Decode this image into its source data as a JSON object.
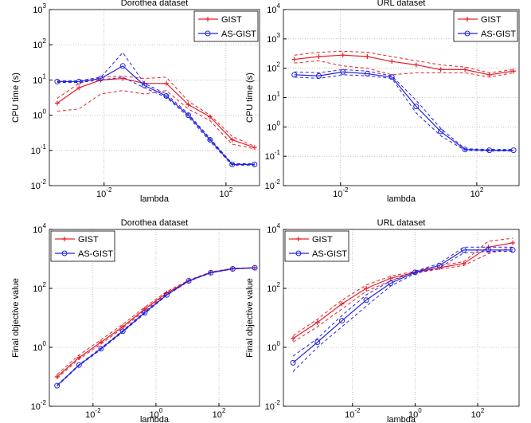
{
  "chart_data": [
    {
      "type": "line",
      "title": "Dorothea dataset",
      "xlabel": "lambda",
      "ylabel": "CPU time (s)",
      "log_x": true,
      "log_y": true,
      "grid": true,
      "legend": "upper right",
      "x": [
        0.00029,
        0.0015,
        0.0078,
        0.041,
        0.21,
        1.1,
        5.8,
        30,
        160,
        870
      ],
      "xlim": [
        0.00016,
        1260
      ],
      "xticks": [
        {
          "value": 0.01,
          "label": "10",
          "exponent": "-2"
        },
        {
          "value": 100,
          "label": "10",
          "exponent": "2"
        }
      ],
      "ylim": [
        0.01,
        1000
      ],
      "yticks": [
        {
          "value": 0.01,
          "label": "10",
          "exponent": "-2"
        },
        {
          "value": 0.1,
          "label": "10",
          "exponent": "-1"
        },
        {
          "value": 1,
          "label": "10",
          "exponent": "0"
        },
        {
          "value": 10,
          "label": "10",
          "exponent": "1"
        },
        {
          "value": 100,
          "label": "10",
          "exponent": "2"
        },
        {
          "value": 1000,
          "label": "10",
          "exponent": "3"
        }
      ],
      "series": [
        {
          "name": "GIST",
          "color": "#e8202a",
          "marker": "plus",
          "values": [
            2.2,
            6,
            10,
            11,
            8,
            8,
            2,
            0.9,
            0.2,
            0.12
          ],
          "upper": [
            3,
            8,
            12,
            13,
            11,
            12,
            2.5,
            1,
            0.25,
            0.13
          ],
          "lower": [
            1.3,
            1.5,
            4,
            5,
            4,
            5,
            1.5,
            0.7,
            0.15,
            0.11
          ]
        },
        {
          "name": "AS-GIST",
          "color": "#2323e0",
          "marker": "circle",
          "values": [
            9,
            9,
            11,
            25,
            7,
            3.5,
            1,
            0.2,
            0.04,
            0.04
          ],
          "upper": [
            9.5,
            9.5,
            12,
            60,
            8,
            4,
            1.1,
            0.22,
            0.042,
            0.042
          ],
          "lower": [
            8.5,
            8.5,
            10,
            12,
            6,
            3.2,
            0.9,
            0.18,
            0.038,
            0.038
          ]
        }
      ]
    },
    {
      "type": "line",
      "title": "URL dataset",
      "xlabel": "lambda",
      "ylabel": "CPU time (s)",
      "log_x": true,
      "log_y": true,
      "grid": true,
      "legend": "upper right",
      "x": [
        0.00044,
        0.0023,
        0.0117,
        0.061,
        0.32,
        1.66,
        8.7,
        45,
        234,
        1200
      ],
      "xlim": [
        0.00021,
        1740
      ],
      "xticks": [
        {
          "value": 0.01,
          "label": "10",
          "exponent": "-2"
        },
        {
          "value": 100,
          "label": "10",
          "exponent": "2"
        }
      ],
      "ylim": [
        0.01,
        10000
      ],
      "yticks": [
        {
          "value": 0.01,
          "label": "10",
          "exponent": "-2"
        },
        {
          "value": 0.1,
          "label": "10",
          "exponent": "-1"
        },
        {
          "value": 1,
          "label": "10",
          "exponent": "0"
        },
        {
          "value": 10,
          "label": "10",
          "exponent": "1"
        },
        {
          "value": 100,
          "label": "10",
          "exponent": "2"
        },
        {
          "value": 1000,
          "label": "10",
          "exponent": "3"
        },
        {
          "value": 10000,
          "label": "10",
          "exponent": "4"
        }
      ],
      "series": [
        {
          "name": "GIST",
          "color": "#e8202a",
          "marker": "plus",
          "values": [
            200,
            250,
            280,
            250,
            170,
            130,
            90,
            90,
            60,
            80
          ],
          "upper": [
            280,
            350,
            380,
            350,
            250,
            180,
            130,
            110,
            70,
            90
          ],
          "lower": [
            150,
            180,
            120,
            100,
            60,
            70,
            70,
            70,
            50,
            70
          ]
        },
        {
          "name": "AS-GIST",
          "color": "#2323e0",
          "marker": "circle",
          "values": [
            60,
            55,
            75,
            65,
            50,
            5,
            0.7,
            0.17,
            0.16,
            0.16
          ],
          "upper": [
            75,
            70,
            90,
            80,
            55,
            8,
            0.9,
            0.18,
            0.17,
            0.17
          ],
          "lower": [
            50,
            45,
            60,
            55,
            45,
            3,
            0.5,
            0.16,
            0.15,
            0.15
          ]
        }
      ]
    },
    {
      "type": "line",
      "title": "Dorothea dataset",
      "xlabel": "lambda",
      "ylabel": "Final objective value",
      "log_x": true,
      "log_y": true,
      "grid": true,
      "legend": "upper left",
      "x": [
        0.00072,
        0.0036,
        0.018,
        0.088,
        0.44,
        2.2,
        11,
        55,
        275,
        1380
      ],
      "xlim": [
        0.00041,
        1950
      ],
      "xticks": [
        {
          "value": 0.01,
          "label": "10",
          "exponent": "-2"
        },
        {
          "value": 1,
          "label": "10",
          "exponent": "0"
        },
        {
          "value": 100,
          "label": "10",
          "exponent": "2"
        }
      ],
      "ylim": [
        0.01,
        10000
      ],
      "yticks": [
        {
          "value": 0.01,
          "label": "10",
          "exponent": "-2"
        },
        {
          "value": 1,
          "label": "10",
          "exponent": "0"
        },
        {
          "value": 100,
          "label": "10",
          "exponent": "2"
        },
        {
          "value": 10000,
          "label": "10",
          "exponent": "4"
        }
      ],
      "series": [
        {
          "name": "GIST",
          "color": "#e8202a",
          "marker": "plus",
          "values": [
            0.1,
            0.45,
            1.5,
            5,
            20,
            70,
            180,
            350,
            470,
            500
          ],
          "upper": [
            0.12,
            0.55,
            1.8,
            6,
            23,
            78,
            190,
            360,
            480,
            510
          ],
          "lower": [
            0.09,
            0.4,
            1.3,
            4.5,
            18,
            65,
            175,
            340,
            460,
            495
          ]
        },
        {
          "name": "AS-GIST",
          "color": "#2323e0",
          "marker": "circle",
          "values": [
            0.05,
            0.25,
            0.9,
            3.5,
            15,
            60,
            180,
            340,
            460,
            500
          ],
          "upper": [
            0.052,
            0.26,
            0.95,
            3.7,
            16,
            62,
            185,
            345,
            465,
            505
          ],
          "lower": [
            0.048,
            0.24,
            0.85,
            3.3,
            14,
            58,
            175,
            335,
            455,
            495
          ]
        }
      ]
    },
    {
      "type": "line",
      "title": "URL dataset",
      "xlabel": "lambda",
      "ylabel": "Final objective value",
      "log_x": true,
      "log_y": true,
      "grid": true,
      "legend": "upper left",
      "x": [
        0.000126,
        0.00076,
        0.0046,
        0.0275,
        0.166,
        1,
        6,
        36,
        219,
        1320
      ],
      "xlim": [
        6.2e-05,
        2100
      ],
      "xticks": [
        {
          "value": 0.01,
          "label": "10",
          "exponent": "-2"
        },
        {
          "value": 1,
          "label": "10",
          "exponent": "0"
        },
        {
          "value": 100,
          "label": "10",
          "exponent": "2"
        }
      ],
      "ylim": [
        0.01,
        10000
      ],
      "yticks": [
        {
          "value": 0.01,
          "label": "10",
          "exponent": "-2"
        },
        {
          "value": 1,
          "label": "10",
          "exponent": "0"
        },
        {
          "value": 100,
          "label": "10",
          "exponent": "2"
        },
        {
          "value": 10000,
          "label": "10",
          "exponent": "4"
        }
      ],
      "series": [
        {
          "name": "GIST",
          "color": "#e8202a",
          "marker": "plus",
          "values": [
            2,
            7,
            30,
            100,
            220,
            350,
            500,
            700,
            2500,
            3500
          ],
          "upper": [
            2.5,
            9,
            40,
            130,
            260,
            380,
            600,
            800,
            4000,
            5000
          ],
          "lower": [
            1.5,
            5,
            20,
            80,
            180,
            330,
            450,
            600,
            1500,
            2500
          ]
        },
        {
          "name": "AS-GIST",
          "color": "#2323e0",
          "marker": "circle",
          "values": [
            0.3,
            1.5,
            8,
            40,
            150,
            350,
            600,
            2000,
            2000,
            2000
          ],
          "upper": [
            0.5,
            2,
            12,
            60,
            180,
            380,
            700,
            2500,
            2500,
            2500
          ],
          "lower": [
            0.15,
            1,
            5,
            25,
            120,
            320,
            500,
            1600,
            1800,
            1800
          ]
        }
      ]
    }
  ]
}
